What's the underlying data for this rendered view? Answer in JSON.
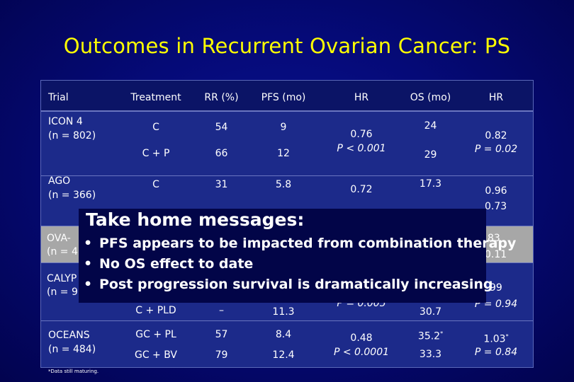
{
  "title": "Outcomes in Recurrent Ovarian Cancer: PS",
  "table": {
    "headers": [
      "Trial",
      "Treatment",
      "RR (%)",
      "PFS (mo)",
      "HR",
      "OS (mo)",
      "HR"
    ],
    "icon4": {
      "trial_line1": "ICON 4",
      "trial_line2": "(n = 802)",
      "row1": {
        "treatment": "C",
        "rr": "54",
        "pfs": "9",
        "os": "24"
      },
      "row2": {
        "treatment": "C + P",
        "rr": "66",
        "pfs": "12",
        "os": "29"
      },
      "hr_pfs": "0.76",
      "hr_pfs_p": "P < 0.001",
      "hr_os": "0.82",
      "hr_os_p": "P = 0.02"
    },
    "ago": {
      "trial_line1": "AGO",
      "trial_line2": "(n = 366)",
      "row1": {
        "treatment": "C",
        "rr": "31",
        "pfs": "5.8",
        "os": "17.3"
      },
      "hr_pfs": "0.72",
      "hr_os": "0.96",
      "hr_os_p_partial": "0.73"
    },
    "ova": {
      "trial_line1": "OVA-",
      "trial_line2": "(n = 4",
      "hr_os_partial": "83",
      "hr_os_p_partial": "0.11"
    },
    "calypso": {
      "trial_line1": "CALYP",
      "trial_line2": "(n = 9",
      "row2": {
        "treatment": "C + PLD",
        "rr": "–",
        "pfs": "11.3",
        "os": "30.7"
      },
      "hr_pfs_p": "P = 0.005",
      "hr_os_partial": "99",
      "hr_os_p": "P = 0.94"
    },
    "oceans": {
      "trial_line1": "OCEANS",
      "trial_line2": "(n = 484)",
      "row1": {
        "treatment": "GC + PL",
        "rr": "57",
        "pfs": "8.4",
        "os": "35.2",
        "os_mark": "*"
      },
      "row2": {
        "treatment": "GC + BV",
        "rr": "79",
        "pfs": "12.4",
        "os": "33.3"
      },
      "hr_pfs": "0.48",
      "hr_pfs_p": "P < 0.0001",
      "hr_os": "1.03",
      "hr_os_mark": "*",
      "hr_os_p": "P = 0.84"
    }
  },
  "footnote": "*Data still maturing.",
  "messages": {
    "title": "Take home messages:",
    "bullet_glyph": "•",
    "items": [
      "PFS appears to be impacted from combination therapy",
      "No OS effect to date",
      "Post progression survival is dramatically increasing"
    ]
  }
}
